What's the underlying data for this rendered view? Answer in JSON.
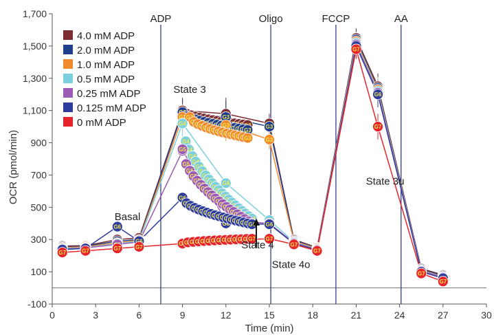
{
  "chart_data": {
    "type": "line",
    "xlabel": "Time (min)",
    "ylabel": "OCR (pmol/min)",
    "xlim": [
      0,
      30
    ],
    "ylim": [
      -100,
      1700
    ],
    "xticks": [
      0,
      3,
      6,
      9,
      12,
      15,
      18,
      21,
      24,
      27,
      30
    ],
    "yticks": [
      -100,
      100,
      300,
      500,
      700,
      900,
      1100,
      1300,
      1500,
      1700
    ],
    "ytick_labels": [
      "-100",
      "100",
      "300",
      "500",
      "700",
      "900",
      "1,100",
      "1,300",
      "1,500",
      "1,700"
    ],
    "grid": false,
    "legend_position": "top-left",
    "injections": [
      {
        "label": "ADP",
        "x": 7.5
      },
      {
        "label": "Oligo",
        "x": 15.1
      },
      {
        "label": "FCCP",
        "x": 19.6
      },
      {
        "label": "AA",
        "x": 24.1
      }
    ],
    "annotations": [
      {
        "text": "Basal",
        "x": 5.2,
        "y": 420
      },
      {
        "text": "State 3",
        "x": 9.5,
        "y": 1210
      },
      {
        "text": "State 4",
        "x": 14.2,
        "y": 245
      },
      {
        "text": "State 4o",
        "x": 16.5,
        "y": 125
      },
      {
        "text": "State 3u",
        "x": 23.0,
        "y": 640
      }
    ],
    "arrow": {
      "x": 14.1,
      "from_y": 250,
      "to_y": 430
    },
    "series": [
      {
        "name": "4.0 mM ADP",
        "color": "#7b2d33",
        "well": "G3",
        "x": [
          0.7,
          2.3,
          4.5,
          6.0,
          9.0,
          12.0,
          15.0,
          16.7,
          18.3,
          21.0,
          22.5,
          25.5,
          27.0
        ],
        "y": [
          260,
          262,
          300,
          310,
          1100,
          1080,
          1020,
          300,
          250,
          1550,
          1250,
          120,
          80
        ],
        "dense_start": [
          9.0,
          1100
        ],
        "dense_end": [
          13.5,
          1010
        ],
        "dense_n": 16
      },
      {
        "name": "2.0 mM ADP",
        "color": "#1f3e8c",
        "well": "G3",
        "x": [
          0.7,
          2.3,
          4.5,
          6.0,
          9.0,
          12.0,
          15.0,
          16.7,
          18.3,
          21.0,
          22.5,
          25.5,
          27.0
        ],
        "y": [
          255,
          258,
          290,
          300,
          1090,
          1060,
          1000,
          295,
          248,
          1540,
          1240,
          115,
          75
        ],
        "dense_start": [
          9.0,
          1090
        ],
        "dense_end": [
          13.5,
          980
        ],
        "dense_n": 16
      },
      {
        "name": "1.0 mM ADP",
        "color": "#f08a2c",
        "well": "G3",
        "x": [
          0.7,
          2.3,
          4.5,
          6.0,
          9.0,
          12.0,
          15.0,
          16.7,
          18.3,
          21.0,
          22.5,
          25.5,
          27.0
        ],
        "y": [
          250,
          255,
          280,
          295,
          1060,
          1010,
          920,
          290,
          245,
          1530,
          1230,
          110,
          70
        ],
        "dense_start": [
          9.5,
          1060
        ],
        "dense_end": [
          13.5,
          930
        ],
        "dense_n": 15
      },
      {
        "name": "0.5 mM ADP",
        "color": "#7ccfdc",
        "well": "G4",
        "x": [
          0.7,
          2.3,
          4.5,
          6.0,
          9.0,
          12.0,
          15.0,
          16.7,
          18.3,
          21.0,
          22.5,
          25.5,
          27.0
        ],
        "y": [
          245,
          250,
          275,
          290,
          1020,
          650,
          420,
          285,
          240,
          1520,
          1220,
          108,
          68
        ],
        "dense_start": [
          9.0,
          1020
        ],
        "dense_end": [
          13.8,
          430
        ],
        "dense_n": 22
      },
      {
        "name": "0.25 mM ADP",
        "color": "#9b5bb5",
        "well": "G5",
        "x": [
          0.7,
          2.3,
          4.5,
          6.0,
          9.0,
          12.0,
          15.0,
          16.7,
          18.3,
          21.0,
          22.5,
          25.5,
          27.0
        ],
        "y": [
          240,
          248,
          270,
          285,
          850,
          420,
          400,
          280,
          238,
          1510,
          1210,
          105,
          65
        ],
        "dense_start": [
          9.0,
          860
        ],
        "dense_end": [
          13.8,
          400
        ],
        "dense_n": 20
      },
      {
        "name": "0.125 mM ADP",
        "color": "#2e3c9c",
        "well": "G6",
        "x": [
          0.7,
          2.3,
          4.5,
          6.0,
          9.0,
          12.0,
          15.0,
          16.7,
          18.3,
          21.0,
          22.5,
          25.5,
          27.0
        ],
        "y": [
          238,
          245,
          380,
          290,
          560,
          400,
          395,
          275,
          235,
          1500,
          1200,
          100,
          60
        ],
        "dense_start": [
          9.0,
          560
        ],
        "dense_end": [
          13.8,
          395
        ],
        "dense_n": 18
      },
      {
        "name": "0 mM ADP",
        "color": "#e5252b",
        "well": "G7",
        "x": [
          0.7,
          2.3,
          4.5,
          6.0,
          9.0,
          12.0,
          15.0,
          16.7,
          18.3,
          21.0,
          22.5,
          25.5,
          27.0
        ],
        "y": [
          220,
          230,
          245,
          255,
          275,
          295,
          305,
          270,
          230,
          1480,
          1000,
          90,
          40
        ],
        "dense_start": [
          9.0,
          275
        ],
        "dense_end": [
          13.8,
          305
        ],
        "dense_n": 14
      }
    ]
  }
}
